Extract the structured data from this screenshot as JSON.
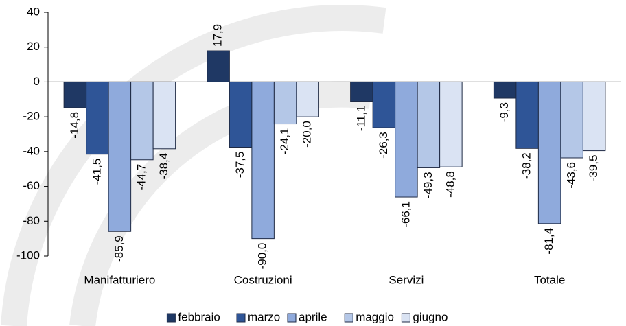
{
  "chart_data": {
    "type": "bar",
    "categories": [
      "Manifatturiero",
      "Costruzioni",
      "Servizi",
      "Totale"
    ],
    "series": [
      {
        "name": "febbraio",
        "color": "#1f3864",
        "values": [
          -14.8,
          17.9,
          -11.1,
          -9.3
        ],
        "value_labels": [
          "-14,8",
          "17,9",
          "-11,1",
          "-9,3"
        ]
      },
      {
        "name": "marzo",
        "color": "#2f5597",
        "values": [
          -41.5,
          -37.5,
          -26.3,
          -38.2
        ],
        "value_labels": [
          "-41,5",
          "-37,5",
          "-26,3",
          "-38,2"
        ]
      },
      {
        "name": "aprile",
        "color": "#8faadc",
        "values": [
          -85.9,
          -90.0,
          -66.1,
          -81.4
        ],
        "value_labels": [
          "-85,9",
          "-90,0",
          "-66,1",
          "-81,4"
        ]
      },
      {
        "name": "maggio",
        "color": "#b4c7e7",
        "values": [
          -44.7,
          -24.1,
          -49.3,
          -43.6
        ],
        "value_labels": [
          "-44,7",
          "-24,1",
          "-49,3",
          "-43,6"
        ]
      },
      {
        "name": "giugno",
        "color": "#dae3f3",
        "values": [
          -38.4,
          -20.0,
          -48.8,
          -39.5
        ],
        "value_labels": [
          "-38,4",
          "-20,0",
          "-48,8",
          "-39,5"
        ]
      }
    ],
    "ylim": [
      -100,
      40
    ],
    "yticks": [
      40,
      20,
      0,
      -20,
      -40,
      -60,
      -80,
      -100
    ],
    "grid": false,
    "legend": "bottom"
  }
}
